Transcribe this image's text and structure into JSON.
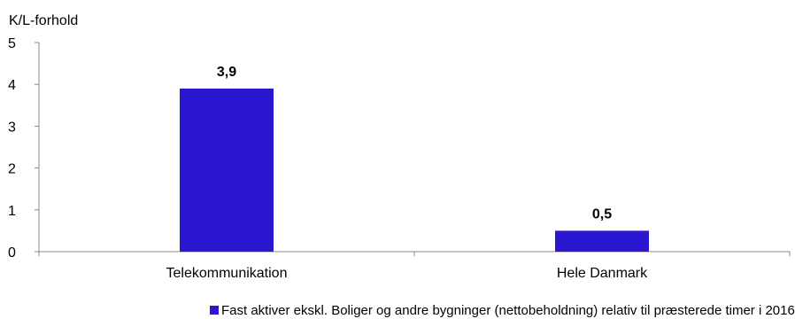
{
  "chart_data": {
    "type": "bar",
    "ylabel": "K/L-forhold",
    "categories": [
      "Telekommunikation",
      "Hele Danmark"
    ],
    "series": [
      {
        "name": "Fast aktiver ekskl. Boliger og andre bygninger (nettobeholdning) relativ til præsterede timer i 2016",
        "values": [
          3.9,
          0.5
        ],
        "labels": [
          "3,9",
          "0,5"
        ],
        "color": "#2A17CF"
      }
    ],
    "ylim": [
      0,
      5
    ],
    "yticks": [
      0,
      1,
      2,
      3,
      4,
      5
    ],
    "grid": false,
    "legend_position": "bottom"
  }
}
